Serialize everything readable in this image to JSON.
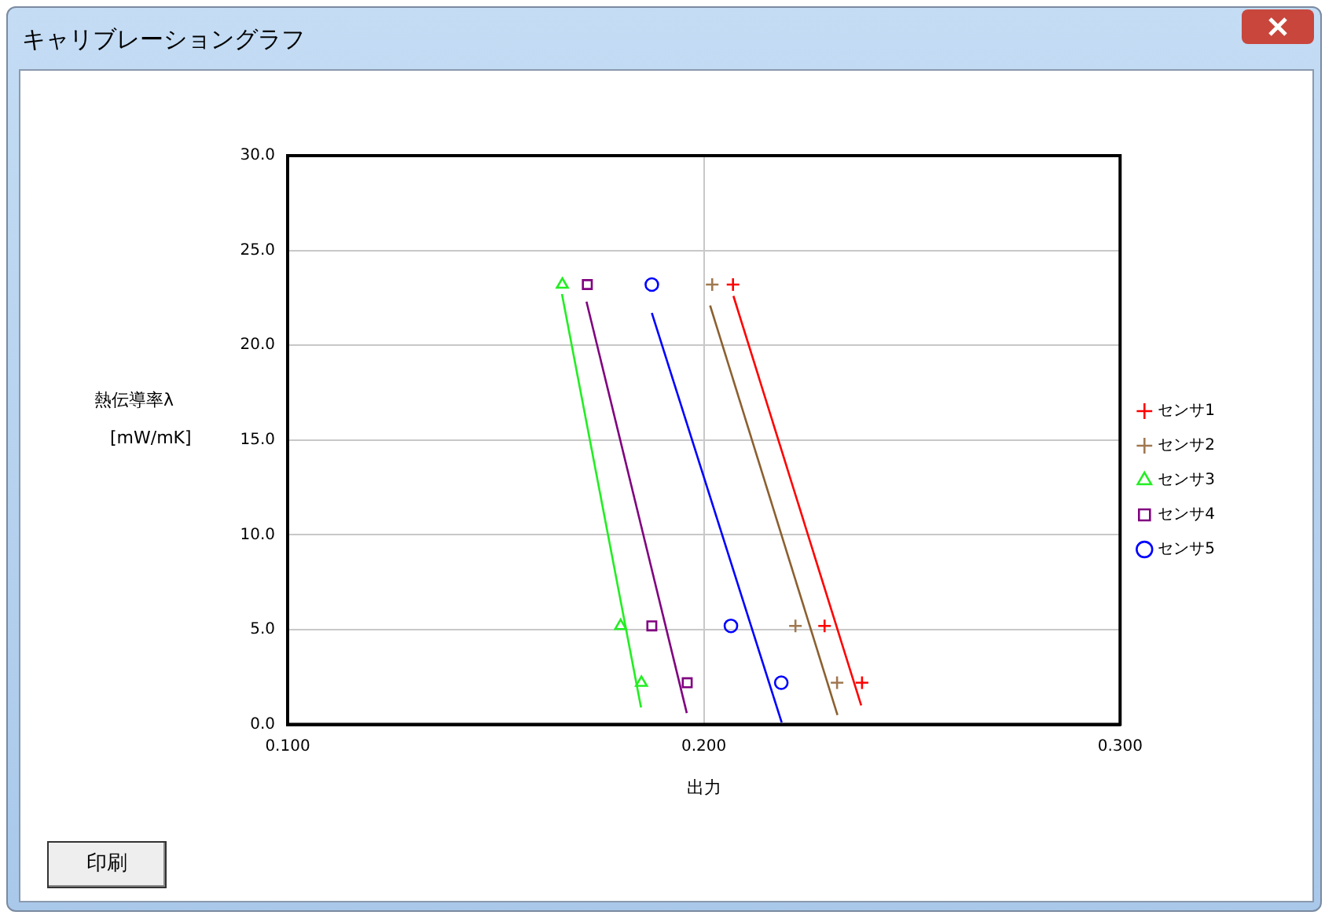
{
  "chart_data": {
    "type": "scatter",
    "title": "キャリブレーショングラフ",
    "xlabel": "出力",
    "ylabel": "熱伝導率λ\n[mW/mK]",
    "xlim": [
      0.1,
      0.3
    ],
    "xticks": [
      {
        "value": 0.1,
        "label": "0.100"
      },
      {
        "value": 0.2,
        "label": "0.200"
      },
      {
        "value": 0.3,
        "label": "0.300"
      }
    ],
    "ylim": [
      0,
      30
    ],
    "yticks": [
      {
        "value": 0,
        "label": "0.0"
      },
      {
        "value": 5,
        "label": "5.0"
      },
      {
        "value": 10,
        "label": "10.0"
      },
      {
        "value": 15,
        "label": "15.0"
      },
      {
        "value": 20,
        "label": "20.0"
      },
      {
        "value": 25,
        "label": "25.0"
      },
      {
        "value": 30,
        "label": "30.0"
      }
    ],
    "grid": true,
    "legend": "right",
    "annotations": [
      "印刷"
    ],
    "series": [
      {
        "name": "センサ1",
        "color": "#ff0000",
        "marker": "cross",
        "x": [
          0.207,
          0.229,
          0.238
        ],
        "values": [
          23.2,
          5.2,
          2.2
        ]
      },
      {
        "name": "センサ2",
        "color": "#a07850",
        "marker": "cross",
        "x": [
          0.202,
          0.222,
          0.232
        ],
        "values": [
          23.2,
          5.2,
          2.2
        ]
      },
      {
        "name": "センサ3",
        "color": "#22ee22",
        "marker": "triangle",
        "x": [
          0.166,
          0.18,
          0.185
        ],
        "values": [
          23.2,
          5.2,
          2.2
        ]
      },
      {
        "name": "センサ4",
        "color": "#800080",
        "marker": "square",
        "x": [
          0.172,
          0.1875,
          0.196
        ],
        "values": [
          23.2,
          5.2,
          2.2
        ]
      },
      {
        "name": "センサ5",
        "color": "#0000ff",
        "marker": "circle",
        "x": [
          0.1875,
          0.2065,
          0.2186
        ],
        "values": [
          23.2,
          5.2,
          2.2
        ]
      },
      {
        "type": "line",
        "color": "#ff0000",
        "x": [
          0.2071,
          0.2378
        ],
        "values": [
          22.6,
          1.0
        ]
      },
      {
        "type": "line",
        "color": "#8b6030",
        "x": [
          0.2015,
          0.2321
        ],
        "values": [
          22.1,
          0.5
        ]
      },
      {
        "type": "line",
        "color": "#22ee22",
        "x": [
          0.1659,
          0.1849
        ],
        "values": [
          22.7,
          0.9
        ]
      },
      {
        "type": "line",
        "color": "#800080",
        "x": [
          0.1718,
          0.1959
        ],
        "values": [
          22.3,
          0.6
        ]
      },
      {
        "type": "line",
        "color": "#0000ff",
        "x": [
          0.1875,
          0.2187
        ],
        "values": [
          21.7,
          0.1
        ]
      }
    ]
  }
}
